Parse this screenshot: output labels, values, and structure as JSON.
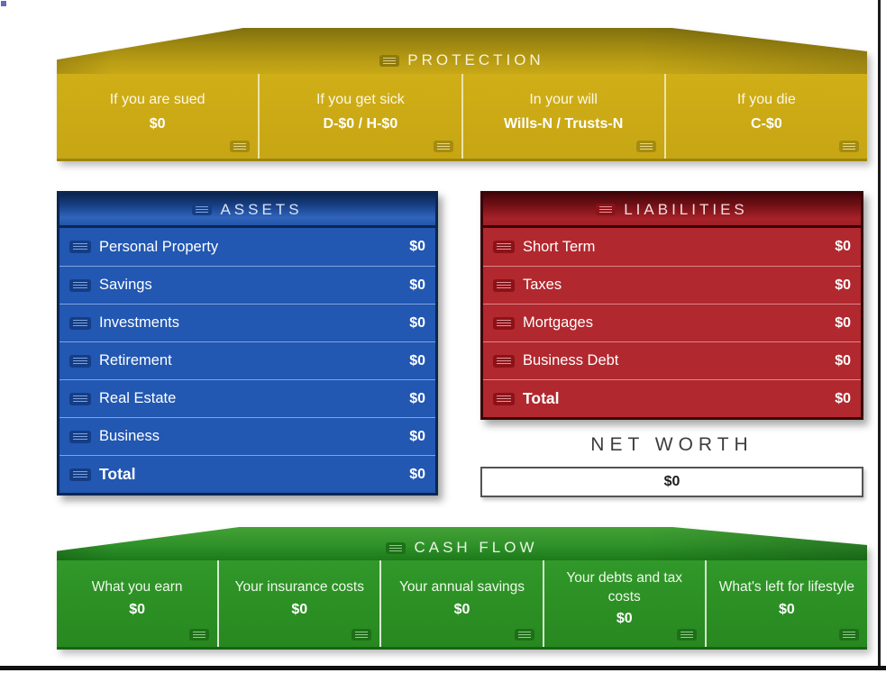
{
  "protection": {
    "title": "PROTECTION",
    "cells": [
      {
        "label": "If you are sued",
        "value": "$0"
      },
      {
        "label": "If you get sick",
        "value": "D-$0 / H-$0"
      },
      {
        "label": "In your will",
        "value": "Wills-N / Trusts-N"
      },
      {
        "label": "If you die",
        "value": "C-$0"
      }
    ]
  },
  "assets": {
    "title": "ASSETS",
    "rows": [
      {
        "label": "Personal Property",
        "value": "$0"
      },
      {
        "label": "Savings",
        "value": "$0"
      },
      {
        "label": "Investments",
        "value": "$0"
      },
      {
        "label": "Retirement",
        "value": "$0"
      },
      {
        "label": "Real Estate",
        "value": "$0"
      },
      {
        "label": "Business",
        "value": "$0"
      },
      {
        "label": "Total",
        "value": "$0"
      }
    ]
  },
  "liabilities": {
    "title": "LIABILITIES",
    "rows": [
      {
        "label": "Short Term",
        "value": "$0"
      },
      {
        "label": "Taxes",
        "value": "$0"
      },
      {
        "label": "Mortgages",
        "value": "$0"
      },
      {
        "label": "Business Debt",
        "value": "$0"
      },
      {
        "label": "Total",
        "value": "$0"
      }
    ]
  },
  "net_worth": {
    "title": "NET WORTH",
    "value": "$0"
  },
  "cash_flow": {
    "title": "CASH FLOW",
    "cells": [
      {
        "label": "What you earn",
        "value": "$0"
      },
      {
        "label": "Your insurance costs",
        "value": "$0"
      },
      {
        "label": "Your annual savings",
        "value": "$0"
      },
      {
        "label": "Your debts and tax costs",
        "value": "$0"
      },
      {
        "label": "What's left for lifestyle",
        "value": "$0"
      }
    ]
  },
  "colors": {
    "protection_gold": "#cbaa16",
    "assets_blue": "#2257b2",
    "liabilities_red": "#b1282e",
    "cash_flow_green": "#2b9222",
    "net_worth_border": "#545454"
  }
}
